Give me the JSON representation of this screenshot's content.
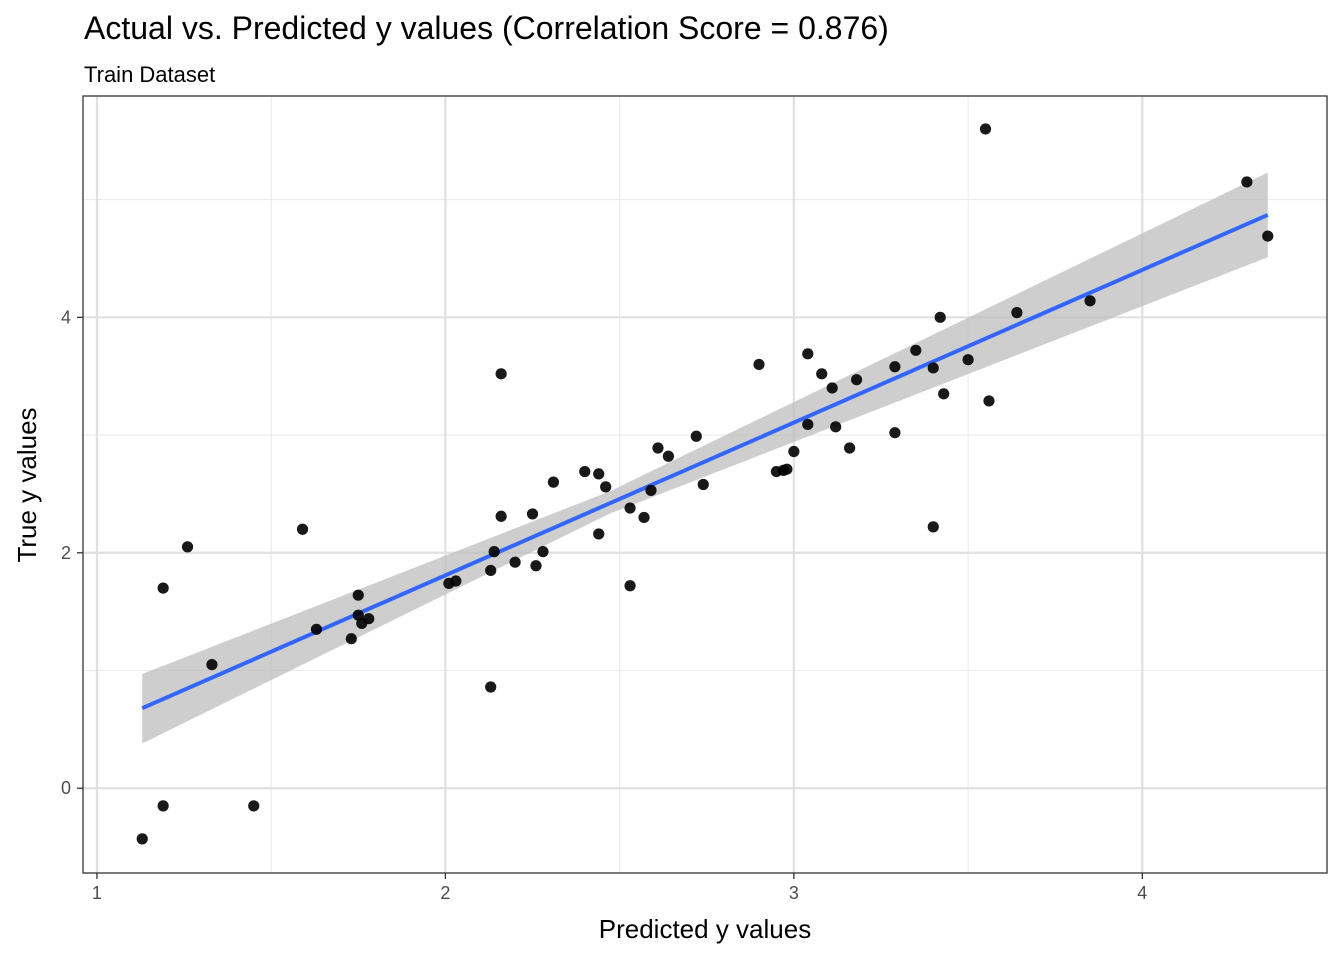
{
  "chart_data": {
    "type": "scatter",
    "title": "Actual vs. Predicted y values (Correlation Score = 0.876)",
    "subtitle": "Train Dataset",
    "xlabel": "Predicted y values",
    "ylabel": "True y values",
    "xlim": [
      0.96,
      4.53
    ],
    "ylim": [
      -0.72,
      5.88
    ],
    "x_ticks": [
      1,
      2,
      3,
      4
    ],
    "y_ticks": [
      0,
      2,
      4
    ],
    "x_minor": [
      1.5,
      2.5,
      3.5
    ],
    "y_minor": [
      1,
      3,
      5
    ],
    "grid": true,
    "point_color": "#000000",
    "line_color": "#3366ff",
    "band_color": "#bdbdbd",
    "points": [
      [
        1.13,
        -0.43
      ],
      [
        1.19,
        -0.15
      ],
      [
        1.19,
        1.7
      ],
      [
        1.26,
        2.05
      ],
      [
        1.33,
        1.05
      ],
      [
        1.45,
        -0.15
      ],
      [
        1.59,
        2.2
      ],
      [
        1.63,
        1.35
      ],
      [
        1.73,
        1.27
      ],
      [
        1.75,
        1.64
      ],
      [
        1.75,
        1.47
      ],
      [
        1.76,
        1.4
      ],
      [
        1.78,
        1.44
      ],
      [
        2.01,
        1.74
      ],
      [
        2.03,
        1.76
      ],
      [
        2.13,
        1.85
      ],
      [
        2.14,
        2.01
      ],
      [
        2.13,
        0.86
      ],
      [
        2.16,
        3.52
      ],
      [
        2.16,
        2.31
      ],
      [
        2.2,
        1.92
      ],
      [
        2.25,
        2.33
      ],
      [
        2.26,
        1.89
      ],
      [
        2.28,
        2.01
      ],
      [
        2.31,
        2.6
      ],
      [
        2.4,
        2.69
      ],
      [
        2.44,
        2.16
      ],
      [
        2.44,
        2.67
      ],
      [
        2.46,
        2.56
      ],
      [
        2.53,
        2.38
      ],
      [
        2.53,
        1.72
      ],
      [
        2.57,
        2.3
      ],
      [
        2.59,
        2.53
      ],
      [
        2.61,
        2.89
      ],
      [
        2.64,
        2.82
      ],
      [
        2.72,
        2.99
      ],
      [
        2.74,
        2.58
      ],
      [
        2.9,
        3.6
      ],
      [
        2.95,
        2.69
      ],
      [
        2.97,
        2.7
      ],
      [
        2.98,
        2.71
      ],
      [
        3.0,
        2.86
      ],
      [
        3.04,
        3.09
      ],
      [
        3.04,
        3.69
      ],
      [
        3.08,
        3.52
      ],
      [
        3.11,
        3.4
      ],
      [
        3.12,
        3.07
      ],
      [
        3.16,
        2.89
      ],
      [
        3.18,
        3.47
      ],
      [
        3.29,
        3.58
      ],
      [
        3.29,
        3.02
      ],
      [
        3.35,
        3.72
      ],
      [
        3.4,
        2.22
      ],
      [
        3.4,
        3.57
      ],
      [
        3.42,
        4.0
      ],
      [
        3.43,
        3.35
      ],
      [
        3.5,
        3.64
      ],
      [
        3.55,
        5.6
      ],
      [
        3.56,
        3.29
      ],
      [
        3.64,
        4.04
      ],
      [
        3.85,
        4.14
      ],
      [
        4.3,
        5.15
      ],
      [
        4.36,
        4.69
      ]
    ],
    "regression_line": [
      [
        1.13,
        0.68
      ],
      [
        4.36,
        4.87
      ]
    ],
    "confidence_band": {
      "x": [
        1.13,
        2.47,
        4.36
      ],
      "lower": [
        0.38,
        2.33,
        4.51
      ],
      "upper": [
        0.97,
        2.52,
        5.23
      ]
    }
  }
}
